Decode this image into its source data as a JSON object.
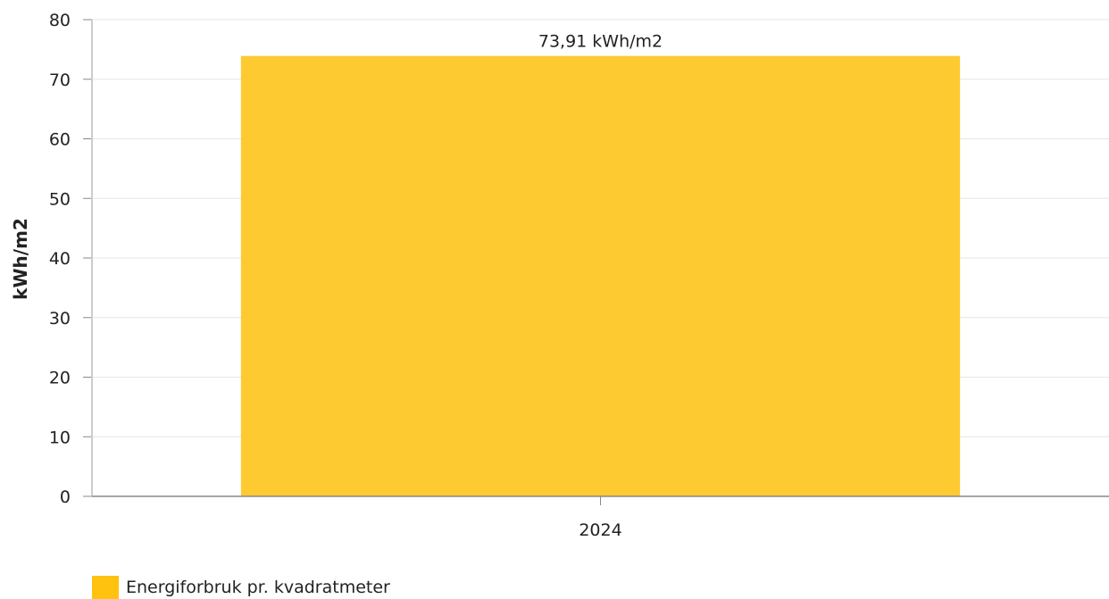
{
  "chart_data": {
    "type": "bar",
    "categories": [
      "2024"
    ],
    "series": [
      {
        "name": "Energiforbruk pr. kvadratmeter",
        "values": [
          73.91
        ]
      }
    ],
    "data_labels": [
      "73,91 kWh/m2"
    ],
    "ylabel": "kWh/m2",
    "xlabel": "",
    "ylim": [
      0,
      80
    ],
    "yticks": [
      0,
      10,
      20,
      30,
      40,
      50,
      60,
      70,
      80
    ],
    "grid": true,
    "legend_position": "bottom-left",
    "colors": {
      "bar": "#FDCA32",
      "legend_swatch": "#FFC20E",
      "grid": "#e6e6e6",
      "axis": "#888888"
    }
  }
}
